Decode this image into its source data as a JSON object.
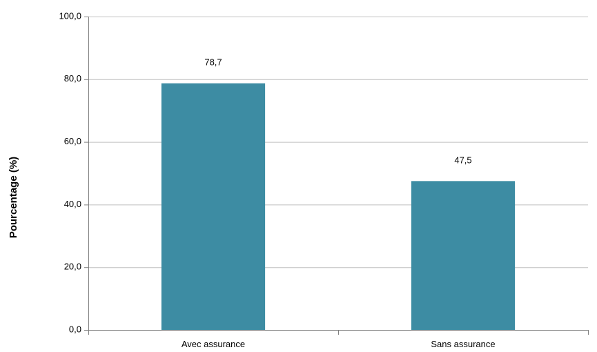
{
  "chart_data": {
    "type": "bar",
    "categories": [
      "Avec assurance",
      "Sans assurance"
    ],
    "values": [
      78.7,
      47.5
    ],
    "data_labels": [
      "78,7",
      "47,5"
    ],
    "title": "",
    "xlabel": "",
    "ylabel": "Pourcentage (%)",
    "ylim": [
      0,
      100
    ],
    "yticks": [
      0,
      20,
      40,
      60,
      80,
      100
    ],
    "ytick_labels": [
      "0,0",
      "20,0",
      "40,0",
      "60,0",
      "80,0",
      "100,0"
    ],
    "grid": true,
    "legend": "none",
    "bar_color": "#3d8ca3"
  }
}
